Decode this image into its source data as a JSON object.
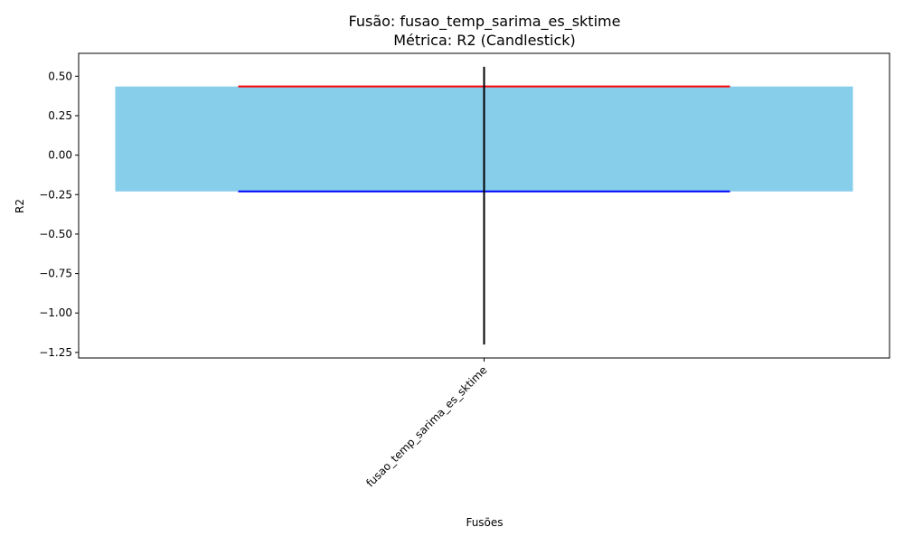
{
  "chart_data": {
    "type": "candlestick",
    "title": "Fusão: fusao_temp_sarima_es_sktime",
    "subtitle": "Métrica: R2 (Candlestick)",
    "xlabel": "Fusões",
    "ylabel": "R2",
    "categories": [
      "fusao_temp_sarima_es_sktime"
    ],
    "candles": [
      {
        "category": "fusao_temp_sarima_es_sktime",
        "open": 0.435,
        "close": -0.23,
        "high": 0.56,
        "low": -1.2
      }
    ],
    "ylim": [
      -1.285,
      0.645
    ],
    "yticks": [
      0.5,
      0.25,
      0.0,
      -0.25,
      -0.5,
      -0.75,
      -1.0,
      -1.25
    ],
    "ytick_labels": [
      "0.50",
      "0.25",
      "0.00",
      "−0.25",
      "−0.50",
      "−0.75",
      "−1.00",
      "−1.25"
    ],
    "colors": {
      "body": "#87ceeb",
      "open_line": "#ff0000",
      "close_line": "#0000ff",
      "wick": "#000000",
      "axis": "#000000"
    },
    "grid": false,
    "legend": "none"
  }
}
